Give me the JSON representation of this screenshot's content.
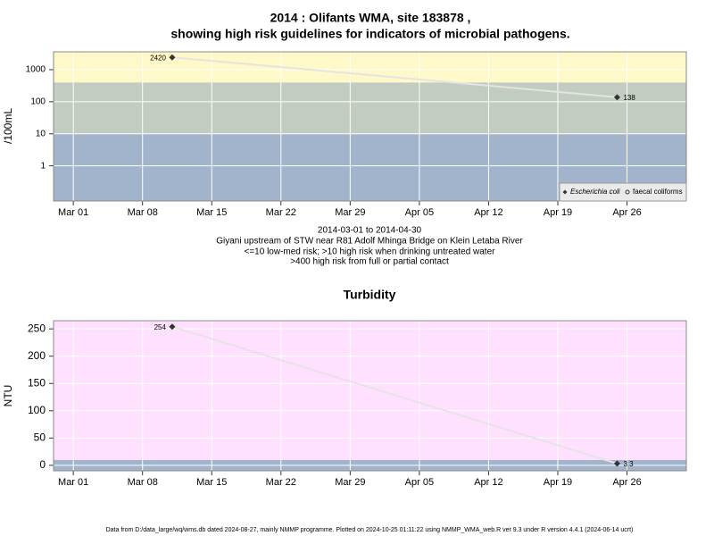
{
  "chart_data": [
    {
      "type": "line",
      "title": "2014 : Olifants WMA, site 183878 ,",
      "subtitle": "showing high risk guidelines for indicators of microbial pathogens.",
      "ylabel": "/100mL",
      "log": true,
      "x": [
        "2014-03-11",
        "2014-04-25"
      ],
      "series": [
        {
          "name": "Escherichia coli",
          "color": "#333333",
          "values": [
            2420,
            138
          ]
        },
        {
          "name": "faecal coliforms",
          "color": "#333333",
          "values": [
            null,
            null
          ]
        }
      ],
      "xlim": [
        "2014-02-27",
        "2014-05-02"
      ],
      "xticks": [
        {
          "value": "2014-03-01",
          "label": "Mar 01"
        },
        {
          "value": "2014-03-08",
          "label": "Mar 08"
        },
        {
          "value": "2014-03-15",
          "label": "Mar 15"
        },
        {
          "value": "2014-03-22",
          "label": "Mar 22"
        },
        {
          "value": "2014-03-29",
          "label": "Mar 29"
        },
        {
          "value": "2014-04-05",
          "label": "Apr 05"
        },
        {
          "value": "2014-04-12",
          "label": "Apr 12"
        },
        {
          "value": "2014-04-19",
          "label": "Apr 19"
        },
        {
          "value": "2014-04-26",
          "label": "Apr 26"
        }
      ],
      "ylim": [
        0.08,
        3600
      ],
      "yticks": [
        1,
        10,
        100,
        1000
      ],
      "bands": [
        {
          "to": 10,
          "color": "#a2b4cc"
        },
        {
          "from": 10,
          "to": 400,
          "color": "#c3ccc0"
        },
        {
          "from": 400,
          "color": "#fff8c8"
        }
      ],
      "grid": true,
      "legend": "bottom-right",
      "notes": [
        "2014-03-01 to 2014-04-30",
        "Giyani upstream of STW near R81 Adolf Mhinga Bridge on Klein Letaba River",
        "<=10 low-med risk; >10 high risk when drinking untreated water",
        ">400 high risk from full or partial contact"
      ]
    },
    {
      "type": "line",
      "title": "Turbidity",
      "ylabel": "NTU",
      "log": false,
      "x": [
        "2014-03-11",
        "2014-04-25"
      ],
      "series": [
        {
          "color": "#333333",
          "values": [
            254,
            3.3
          ]
        }
      ],
      "xlim": [
        "2014-02-27",
        "2014-05-02"
      ],
      "xticks": [
        {
          "value": "2014-03-01",
          "label": "Mar 01"
        },
        {
          "value": "2014-03-08",
          "label": "Mar 08"
        },
        {
          "value": "2014-03-15",
          "label": "Mar 15"
        },
        {
          "value": "2014-03-22",
          "label": "Mar 22"
        },
        {
          "value": "2014-03-29",
          "label": "Mar 29"
        },
        {
          "value": "2014-04-05",
          "label": "Apr 05"
        },
        {
          "value": "2014-04-12",
          "label": "Apr 12"
        },
        {
          "value": "2014-04-19",
          "label": "Apr 19"
        },
        {
          "value": "2014-04-26",
          "label": "Apr 26"
        }
      ],
      "ylim": [
        -10,
        265
      ],
      "yticks": [
        0,
        50,
        100,
        150,
        200,
        250
      ],
      "bands": [
        {
          "to": 10,
          "color": "#a2b4cc"
        },
        {
          "from": 10,
          "color": "#ffe0ff"
        }
      ],
      "grid": true
    }
  ],
  "footer": "Data from D:/data_large/wq/wms.db dated 2024-08-27, mainly NMMP programme. Plotted on 2024-10-25 01:11:22 using NMMP_WMA_web.R ver 9.3 under R version 4.4.1 (2024-06-14 ucrt)"
}
